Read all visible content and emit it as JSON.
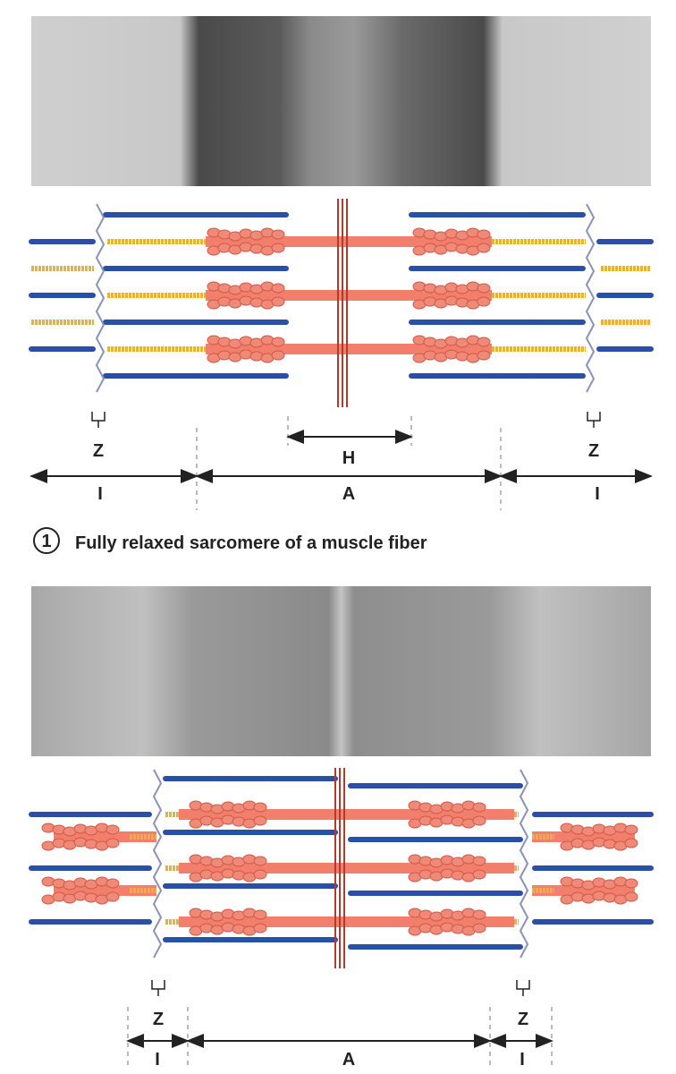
{
  "panels": [
    {
      "number": "1",
      "caption": "Fully relaxed sarcomere of a muscle fiber",
      "labels": {
        "z_left": "Z",
        "z_right": "Z",
        "h": "H",
        "i_left": "I",
        "a": "A",
        "i_right": "I"
      }
    },
    {
      "labels": {
        "z_left": "Z",
        "z_right": "Z",
        "i_left": "I",
        "a": "A",
        "i_right": "I"
      }
    }
  ]
}
